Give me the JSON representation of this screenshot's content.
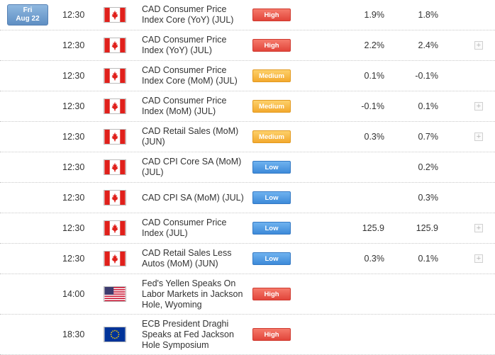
{
  "date_badge": {
    "day": "Fri",
    "date": "Aug 22"
  },
  "colors": {
    "high": "#e2453a",
    "medium": "#f3a92e",
    "low": "#3d8ad9"
  },
  "rows": [
    {
      "time": "12:30",
      "flag": "canada-flag-icon",
      "event": "CAD Consumer Price Index Core (YoY) (JUL)",
      "importance": "High",
      "actual": "1.9%",
      "forecast": "1.8%",
      "expand": ""
    },
    {
      "time": "12:30",
      "flag": "canada-flag-icon",
      "event": "CAD Consumer Price Index (YoY) (JUL)",
      "importance": "High",
      "actual": "2.2%",
      "forecast": "2.4%",
      "expand": "+"
    },
    {
      "time": "12:30",
      "flag": "canada-flag-icon",
      "event": "CAD Consumer Price Index Core (MoM) (JUL)",
      "importance": "Medium",
      "actual": "0.1%",
      "forecast": "-0.1%",
      "expand": ""
    },
    {
      "time": "12:30",
      "flag": "canada-flag-icon",
      "event": "CAD Consumer Price Index (MoM) (JUL)",
      "importance": "Medium",
      "actual": "-0.1%",
      "forecast": "0.1%",
      "expand": "+"
    },
    {
      "time": "12:30",
      "flag": "canada-flag-icon",
      "event": "CAD Retail Sales (MoM) (JUN)",
      "importance": "Medium",
      "actual": "0.3%",
      "forecast": "0.7%",
      "expand": "+"
    },
    {
      "time": "12:30",
      "flag": "canada-flag-icon",
      "event": "CAD CPI Core SA (MoM) (JUL)",
      "importance": "Low",
      "actual": "",
      "forecast": "0.2%",
      "expand": ""
    },
    {
      "time": "12:30",
      "flag": "canada-flag-icon",
      "event": "CAD CPI SA (MoM) (JUL)",
      "importance": "Low",
      "actual": "",
      "forecast": "0.3%",
      "expand": ""
    },
    {
      "time": "12:30",
      "flag": "canada-flag-icon",
      "event": "CAD Consumer Price Index (JUL)",
      "importance": "Low",
      "actual": "125.9",
      "forecast": "125.9",
      "expand": "+"
    },
    {
      "time": "12:30",
      "flag": "canada-flag-icon",
      "event": "CAD Retail Sales Less Autos (MoM) (JUN)",
      "importance": "Low",
      "actual": "0.3%",
      "forecast": "0.1%",
      "expand": "+"
    },
    {
      "time": "14:00",
      "flag": "usa-flag-icon",
      "event": "Fed's Yellen Speaks On Labor Markets in Jackson Hole, Wyoming",
      "importance": "High",
      "actual": "",
      "forecast": "",
      "expand": ""
    },
    {
      "time": "18:30",
      "flag": "eu-flag-icon",
      "event": "ECB President Draghi Speaks at Fed Jackson Hole Symposium",
      "importance": "High",
      "actual": "",
      "forecast": "",
      "expand": ""
    }
  ]
}
